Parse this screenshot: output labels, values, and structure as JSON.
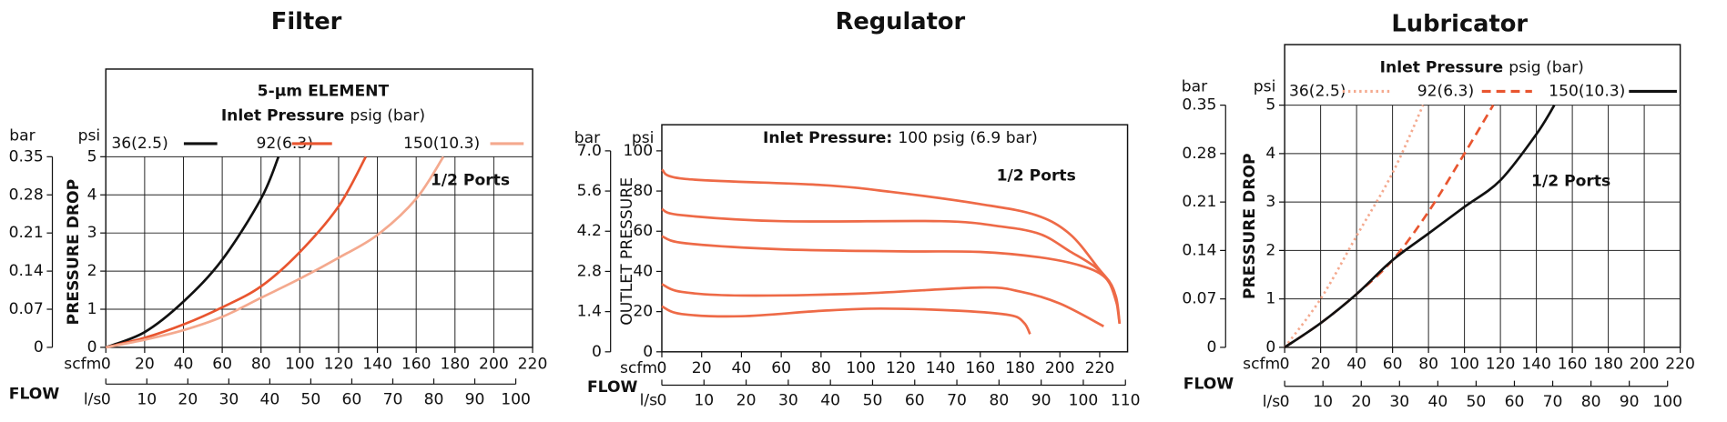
{
  "chart_data": [
    {
      "type": "line",
      "title": "Filter",
      "subtitle": "5-µm ELEMENT",
      "legend_title": "Inlet Pressure",
      "legend_title_unit": "psig (bar)",
      "annotation": "1/2 Ports",
      "y_label": "PRESSURE DROP",
      "y_unit": "psi",
      "y2_unit": "bar",
      "x_label": "FLOW",
      "x_unit": "scfm",
      "x2_unit": "l/s",
      "xlim": [
        0,
        220
      ],
      "xticks": [
        0,
        20,
        40,
        60,
        80,
        100,
        120,
        140,
        160,
        180,
        200,
        220
      ],
      "x2lim": [
        0,
        104.1
      ],
      "x2ticks": [
        0,
        10,
        20,
        30,
        40,
        50,
        60,
        70,
        80,
        90,
        100
      ],
      "ylim": [
        0,
        7.3
      ],
      "yticks": [
        0,
        1,
        2,
        3,
        4,
        5
      ],
      "y2lim": [
        0,
        0.511
      ],
      "y2ticks": [
        0,
        0.07,
        0.14,
        0.21,
        0.28,
        0.35
      ],
      "grid": true,
      "series": [
        {
          "name": "36(2.5)",
          "color": "#111111",
          "line_style": "solid",
          "x": [
            0,
            20,
            40,
            60,
            80,
            89
          ],
          "values": [
            0,
            0.4,
            1.2,
            2.3,
            3.9,
            5
          ]
        },
        {
          "name": "92(6.3)",
          "color": "#e8552f",
          "line_style": "solid",
          "x": [
            0,
            20,
            40,
            60,
            80,
            100,
            120,
            134
          ],
          "values": [
            0,
            0.25,
            0.6,
            1.05,
            1.6,
            2.5,
            3.7,
            5
          ]
        },
        {
          "name": "150(10.3)",
          "color": "#f4a98e",
          "line_style": "solid",
          "x": [
            0,
            20,
            40,
            60,
            80,
            100,
            120,
            140,
            160,
            174
          ],
          "values": [
            0,
            0.2,
            0.45,
            0.8,
            1.3,
            1.8,
            2.35,
            2.95,
            3.9,
            5
          ]
        }
      ]
    },
    {
      "type": "line",
      "title": "Regulator",
      "legend_title": "Inlet Pressure:",
      "legend_title_unit": "100 psig (6.9 bar)",
      "annotation": "1/2 Ports",
      "y_label": "OUTLET PRESSURE",
      "y_unit": "psi",
      "y2_unit": "bar",
      "x_label": "FLOW",
      "x_unit": "scfm",
      "x2_unit": "l/s",
      "xlim": [
        0,
        234
      ],
      "xticks": [
        0,
        20,
        40,
        60,
        80,
        100,
        120,
        140,
        160,
        180,
        200,
        220
      ],
      "x2lim": [
        0,
        110.5
      ],
      "x2ticks": [
        0,
        10,
        20,
        30,
        40,
        50,
        60,
        70,
        80,
        90,
        100,
        110
      ],
      "ylim": [
        0,
        113
      ],
      "yticks": [
        0,
        20,
        40,
        60,
        80,
        100
      ],
      "y2lim": [
        0,
        7.91
      ],
      "y2ticks": [
        0,
        1.4,
        2.8,
        4.2,
        5.6,
        {
          "value": 7,
          "label": "7.0"
        }
      ],
      "grid": false,
      "series": [
        {
          "color": "#ee6a47",
          "line_style": "solid",
          "x": [
            0,
            12,
            80,
            115,
            160,
            188,
            205,
            219,
            227,
            230
          ],
          "values": [
            90.6,
            86,
            83,
            79.6,
            73.5,
            68,
            58.6,
            42,
            31,
            14
          ]
        },
        {
          "color": "#ee6a47",
          "line_style": "solid",
          "x": [
            0,
            10,
            60,
            140,
            170,
            190,
            205,
            218,
            225,
            229
          ],
          "values": [
            71,
            68,
            65,
            65,
            62.4,
            58.6,
            50,
            42,
            34,
            22.6
          ]
        },
        {
          "color": "#ee6a47",
          "line_style": "solid",
          "x": [
            0,
            12,
            60,
            120,
            160,
            190,
            210,
            222,
            228,
            230
          ],
          "values": [
            57.5,
            54,
            51,
            50,
            49.7,
            47,
            43,
            37.6,
            28,
            14
          ]
        },
        {
          "color": "#ee6a47",
          "line_style": "solid",
          "x": [
            0,
            10,
            40,
            100,
            160,
            180,
            200,
            222
          ],
          "values": [
            33.7,
            29.8,
            28,
            29,
            32,
            30,
            24,
            12.7
          ]
        },
        {
          "color": "#ee6a47",
          "line_style": "solid",
          "x": [
            0,
            10,
            40,
            80,
            110,
            150,
            175,
            182,
            185
          ],
          "values": [
            22.6,
            18.8,
            17.7,
            20.4,
            21.5,
            20.4,
            18.2,
            14.4,
            8.8
          ]
        }
      ]
    },
    {
      "type": "line",
      "title": "Lubricator",
      "legend_title": "Inlet Pressure",
      "legend_title_unit": "psig (bar)",
      "annotation": "1/2 Ports",
      "y_label": "PRESSURE DROP",
      "y_unit": "psi",
      "y2_unit": "bar",
      "x_label": "FLOW",
      "x_unit": "scfm",
      "x2_unit": "l/s",
      "xlim": [
        0,
        220
      ],
      "xticks": [
        0,
        20,
        40,
        60,
        80,
        100,
        120,
        140,
        160,
        180,
        200,
        220
      ],
      "x2lim": [
        0,
        103.3
      ],
      "x2ticks": [
        0,
        10,
        20,
        30,
        40,
        50,
        60,
        70,
        80,
        90,
        100
      ],
      "ylim": [
        0,
        6.25
      ],
      "yticks": [
        0,
        1,
        2,
        3,
        4,
        5
      ],
      "y2lim": [
        0,
        0.4375
      ],
      "y2ticks": [
        0,
        0.07,
        0.14,
        0.21,
        0.28,
        0.35
      ],
      "grid": true,
      "series": [
        {
          "name": "36(2.5)",
          "color": "#f4a98e",
          "line_style": "dotted",
          "x": [
            0,
            20,
            40,
            60,
            77
          ],
          "values": [
            0,
            1.0,
            2.3,
            3.6,
            5
          ]
        },
        {
          "name": "92(6.3)",
          "color": "#e8552f",
          "line_style": "dashed",
          "x": [
            0,
            20,
            40,
            60,
            80,
            100,
            116
          ],
          "values": [
            0,
            0.5,
            1.1,
            1.8,
            2.8,
            4.0,
            5
          ]
        },
        {
          "name": "150(10.3)",
          "color": "#111111",
          "line_style": "solid",
          "x": [
            0,
            20,
            40,
            60,
            80,
            100,
            120,
            140,
            150
          ],
          "values": [
            0,
            0.5,
            1.1,
            1.8,
            2.35,
            2.9,
            3.45,
            4.4,
            5
          ]
        }
      ]
    }
  ]
}
